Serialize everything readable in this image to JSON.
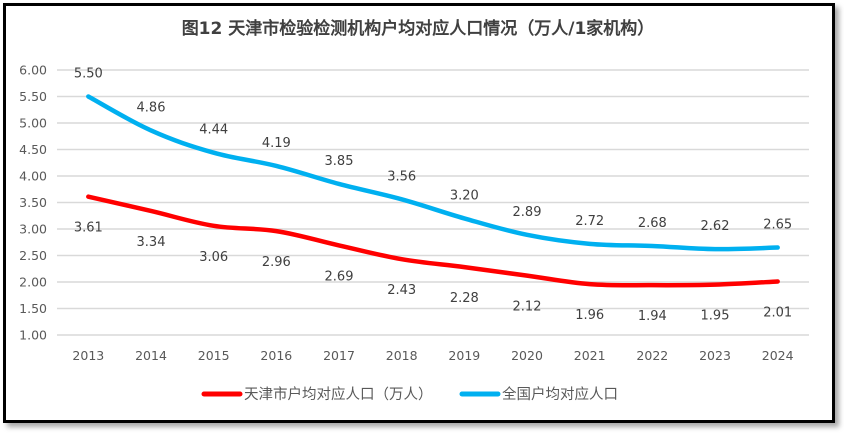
{
  "chart_data": {
    "type": "line",
    "title": "图12 天津市检验检测机构户均对应人口情况（万人/1家机构）",
    "xlabel": "",
    "ylabel": "",
    "categories": [
      "2013",
      "2014",
      "2015",
      "2016",
      "2017",
      "2018",
      "2019",
      "2020",
      "2021",
      "2022",
      "2023",
      "2024"
    ],
    "ylim": [
      1.0,
      6.0
    ],
    "yticks": [
      "1.00",
      "1.50",
      "2.00",
      "2.50",
      "3.00",
      "3.50",
      "4.00",
      "4.50",
      "5.00",
      "5.50",
      "6.00"
    ],
    "grid": true,
    "legend_position": "bottom",
    "series": [
      {
        "name": "天津市户均对应人口（万人）",
        "color": "#FF0000",
        "label_position": "below",
        "values": [
          3.61,
          3.34,
          3.06,
          2.96,
          2.69,
          2.43,
          2.28,
          2.12,
          1.96,
          1.94,
          1.95,
          2.01
        ],
        "labels": [
          "3.61",
          "3.34",
          "3.06",
          "2.96",
          "2.69",
          "2.43",
          "2.28",
          "2.12",
          "1.96",
          "1.94",
          "1.95",
          "2.01"
        ]
      },
      {
        "name": "全国户均对应人口",
        "color": "#00B0F0",
        "label_position": "above",
        "values": [
          5.5,
          4.86,
          4.44,
          4.19,
          3.85,
          3.56,
          3.2,
          2.89,
          2.72,
          2.68,
          2.62,
          2.65
        ],
        "labels": [
          "5.50",
          "4.86",
          "4.44",
          "4.19",
          "3.85",
          "3.56",
          "3.20",
          "2.89",
          "2.72",
          "2.68",
          "2.62",
          "2.65"
        ]
      }
    ]
  }
}
